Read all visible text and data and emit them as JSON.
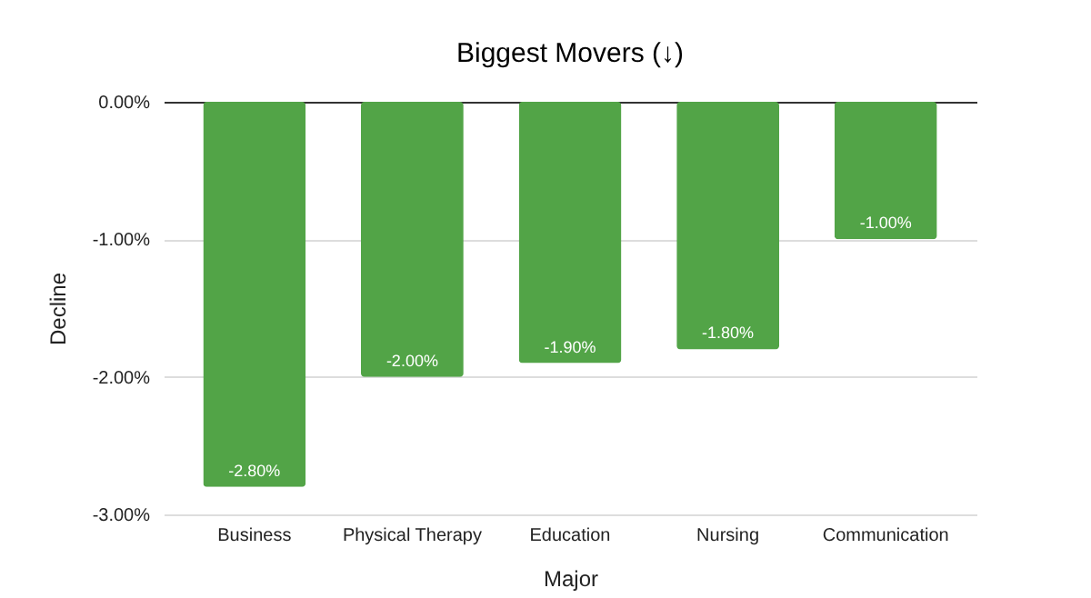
{
  "chart_data": {
    "type": "bar",
    "title": "Biggest Movers (↓)",
    "xlabel": "Major",
    "ylabel": "Decline",
    "categories": [
      "Business",
      "Physical Therapy",
      "Education",
      "Nursing",
      "Communication"
    ],
    "values": [
      -2.8,
      -2.0,
      -1.9,
      -1.8,
      -1.0
    ],
    "value_labels": [
      "-2.80%",
      "-2.00%",
      "-1.90%",
      "-1.80%",
      "-1.00%"
    ],
    "color": "#52a447",
    "ylim": [
      -3,
      0
    ],
    "yticks": [
      {
        "value": -3,
        "label": "-3.00%"
      },
      {
        "value": -2,
        "label": "-2.00%"
      },
      {
        "value": -1,
        "label": "-1.00%"
      },
      {
        "value": 0,
        "label": "0.00%"
      }
    ],
    "grid": "y"
  }
}
